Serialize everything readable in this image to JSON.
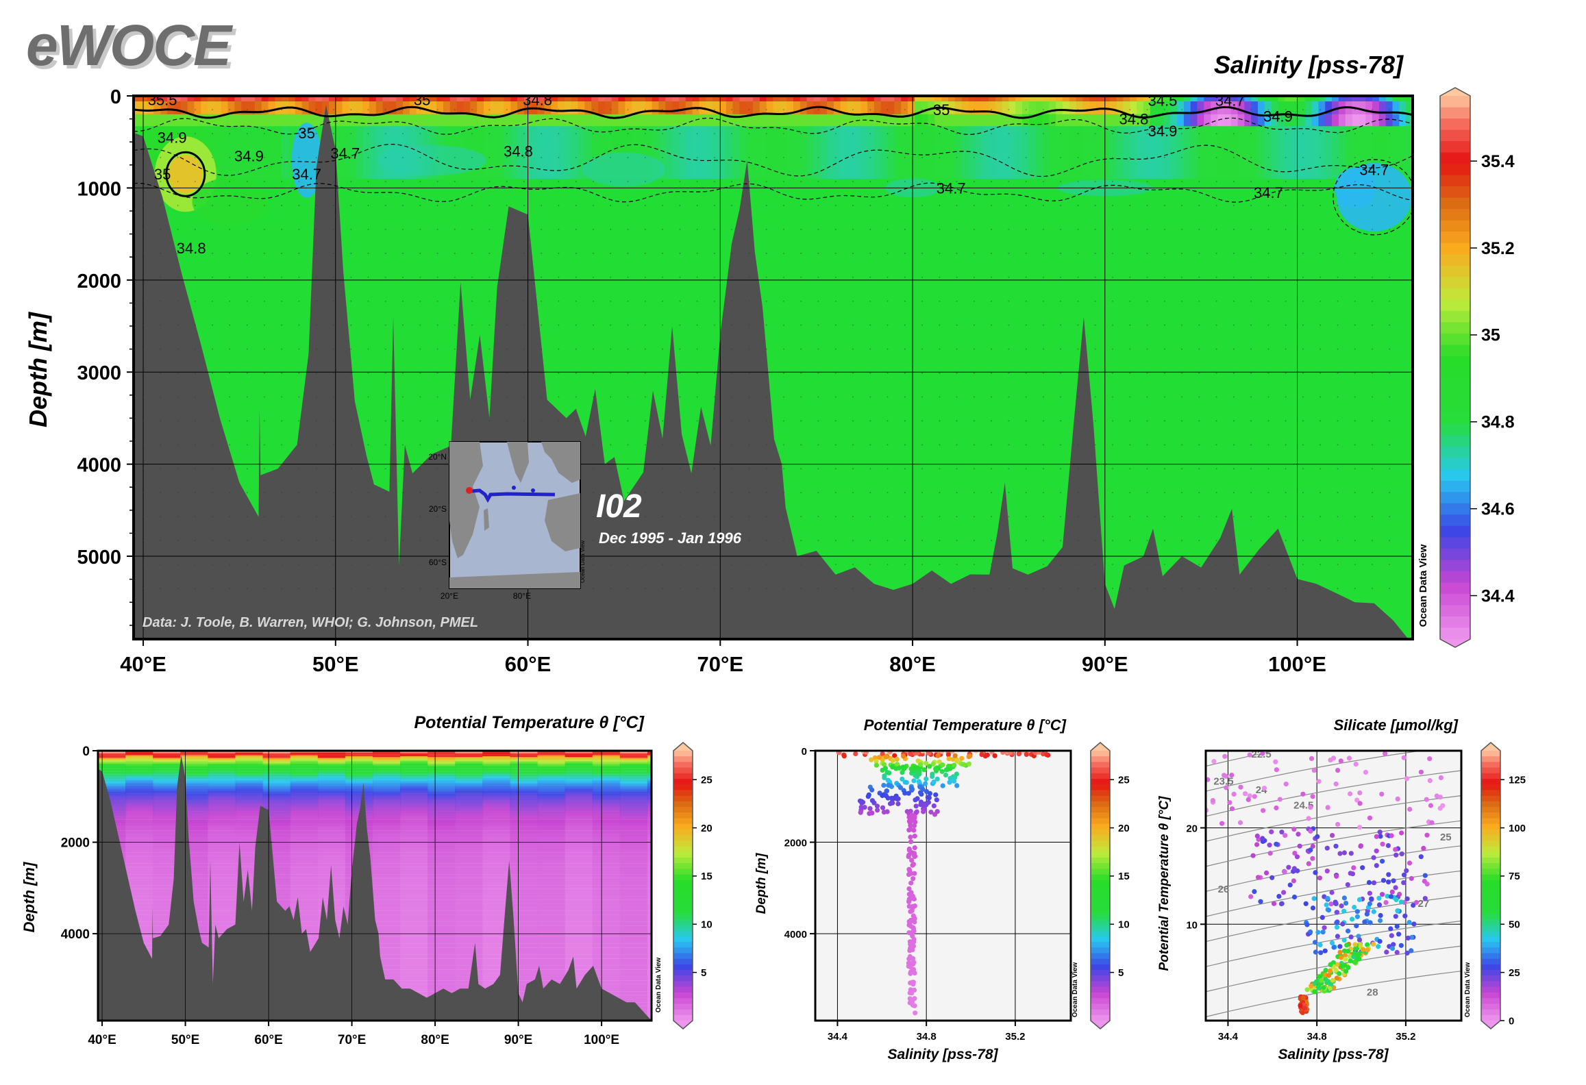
{
  "logo": "eWOCE",
  "colors": {
    "bathymetry": "#505050",
    "background": "#ffffff",
    "section_line": "#2222cc",
    "marker": "#e02020"
  },
  "chart_data": [
    {
      "id": "main-salinity-section",
      "type": "heatmap",
      "title": "Salinity [pss-78]",
      "ylabel": "Depth [m]",
      "xlabel": "",
      "x_ticks": [
        "40°E",
        "50°E",
        "60°E",
        "70°E",
        "80°E",
        "90°E",
        "100°E"
      ],
      "x_tick_values": [
        40,
        50,
        60,
        70,
        80,
        90,
        100
      ],
      "xlim": [
        39.5,
        106
      ],
      "y_ticks": [
        "0",
        "1000",
        "2000",
        "3000",
        "4000",
        "5000"
      ],
      "y_tick_values": [
        0,
        1000,
        2000,
        3000,
        4000,
        5000
      ],
      "ylim": [
        0,
        5900
      ],
      "colorbar": {
        "label": "Ocean Data View",
        "ticks": [
          "35.4",
          "35.2",
          "35",
          "34.8",
          "34.6",
          "34.4"
        ],
        "tick_values": [
          35.4,
          35.2,
          35.0,
          34.8,
          34.6,
          34.4
        ],
        "range": [
          34.3,
          35.55
        ]
      },
      "contour_labels": [
        {
          "text": "35.5",
          "lon": 41,
          "depth": 40
        },
        {
          "text": "35",
          "lon": 54.5,
          "depth": 40
        },
        {
          "text": "34.8",
          "lon": 60.5,
          "depth": 40
        },
        {
          "text": "34.9",
          "lon": 41.5,
          "depth": 450
        },
        {
          "text": "35",
          "lon": 41,
          "depth": 850
        },
        {
          "text": "34.9",
          "lon": 45.5,
          "depth": 650
        },
        {
          "text": "35",
          "lon": 48.5,
          "depth": 400
        },
        {
          "text": "34.7",
          "lon": 48.5,
          "depth": 850
        },
        {
          "text": "34.7",
          "lon": 50.5,
          "depth": 620
        },
        {
          "text": "34.8",
          "lon": 42.5,
          "depth": 1650
        },
        {
          "text": "34.8",
          "lon": 59.5,
          "depth": 600
        },
        {
          "text": "35",
          "lon": 81.5,
          "depth": 150
        },
        {
          "text": "34.7",
          "lon": 82,
          "depth": 1000
        },
        {
          "text": "34.8",
          "lon": 91.5,
          "depth": 250
        },
        {
          "text": "34.9",
          "lon": 93,
          "depth": 380
        },
        {
          "text": "34.5",
          "lon": 93,
          "depth": 50
        },
        {
          "text": "34.7",
          "lon": 96.5,
          "depth": 50
        },
        {
          "text": "34.9",
          "lon": 99,
          "depth": 220
        },
        {
          "text": "34.7",
          "lon": 98.5,
          "depth": 1050
        },
        {
          "text": "34.7",
          "lon": 104,
          "depth": 800
        }
      ],
      "station_label": "I02",
      "date_label": "Dec 1995 - Jan 1996",
      "credit": "Data: J. Toole, B. Warren, WHOI; G. Johnson, PMEL",
      "inset_map": {
        "lat_labels": [
          "20°N",
          "20°S",
          "60°S"
        ],
        "lon_labels": [
          "20°E",
          "80°E"
        ],
        "side_label": "Ocean Data View"
      }
    },
    {
      "id": "temperature-section",
      "type": "heatmap",
      "title": "Potential Temperature θ [°C]",
      "ylabel": "Depth [m]",
      "x_ticks": [
        "40°E",
        "50°E",
        "60°E",
        "70°E",
        "80°E",
        "90°E",
        "100°E"
      ],
      "x_tick_values": [
        40,
        50,
        60,
        70,
        80,
        90,
        100
      ],
      "xlim": [
        39.5,
        106
      ],
      "y_ticks": [
        "0",
        "2000",
        "4000"
      ],
      "y_tick_values": [
        0,
        2000,
        4000
      ],
      "ylim": [
        0,
        5900
      ],
      "colorbar": {
        "label": "Ocean Data View",
        "ticks": [
          "25",
          "20",
          "15",
          "10",
          "5"
        ],
        "tick_values": [
          25,
          20,
          15,
          10,
          5
        ],
        "range": [
          0,
          28
        ]
      }
    },
    {
      "id": "temperature-salinity-depth-scatter",
      "type": "scatter",
      "title": "Potential Temperature θ [°C]",
      "xlabel": "Salinity [pss-78]",
      "ylabel": "Depth [m]",
      "x_ticks": [
        "34.4",
        "34.8",
        "35.2"
      ],
      "x_tick_values": [
        34.4,
        34.8,
        35.2
      ],
      "xlim": [
        34.3,
        35.45
      ],
      "y_ticks": [
        "0",
        "2000",
        "4000"
      ],
      "y_tick_values": [
        0,
        2000,
        4000
      ],
      "ylim": [
        0,
        5900
      ],
      "colorbar": {
        "label": "Ocean Data View",
        "ticks": [
          "25",
          "20",
          "15",
          "10",
          "5"
        ],
        "tick_values": [
          25,
          20,
          15,
          10,
          5
        ],
        "range": [
          0,
          28
        ]
      },
      "clusters": [
        {
          "salinity_range": [
            34.4,
            35.35
          ],
          "depth_range": [
            0,
            120
          ],
          "temp_range": [
            24,
            28
          ],
          "n": 70
        },
        {
          "salinity_range": [
            34.55,
            35.0
          ],
          "depth_range": [
            100,
            400
          ],
          "temp_range": [
            13,
            22
          ],
          "n": 60
        },
        {
          "salinity_range": [
            34.6,
            34.95
          ],
          "depth_range": [
            350,
            800
          ],
          "temp_range": [
            7,
            12
          ],
          "n": 60
        },
        {
          "salinity_range": [
            34.5,
            34.85
          ],
          "depth_range": [
            750,
            1400
          ],
          "temp_range": [
            3,
            7
          ],
          "n": 80
        },
        {
          "salinity_range": [
            34.7,
            34.78
          ],
          "depth_range": [
            1400,
            5750
          ],
          "temp_range": [
            0.8,
            2.5
          ],
          "n": 120
        }
      ]
    },
    {
      "id": "theta-salinity-silicate-scatter",
      "type": "scatter",
      "title": "Silicate [µmol/kg]",
      "xlabel": "Salinity [pss-78]",
      "ylabel": "Potential Temperature θ [°C]",
      "x_ticks": [
        "34.4",
        "34.8",
        "35.2"
      ],
      "x_tick_values": [
        34.4,
        34.8,
        35.2
      ],
      "xlim": [
        34.3,
        35.45
      ],
      "y_ticks": [
        "20",
        "10"
      ],
      "y_tick_values": [
        20,
        10
      ],
      "ylim": [
        0,
        28
      ],
      "density_labels": [
        "22.5",
        "23.5",
        "24",
        "24.5",
        "25",
        "26",
        "27",
        "28"
      ],
      "density_label_positions": [
        {
          "text": "22.5",
          "s": 34.55,
          "t": 27.3
        },
        {
          "text": "23.5",
          "s": 34.38,
          "t": 24.5
        },
        {
          "text": "24",
          "s": 34.55,
          "t": 23.6
        },
        {
          "text": "24.5",
          "s": 34.74,
          "t": 22.0
        },
        {
          "text": "25",
          "s": 35.38,
          "t": 18.7
        },
        {
          "text": "26",
          "s": 34.38,
          "t": 13.3
        },
        {
          "text": "27",
          "s": 35.28,
          "t": 11.8
        },
        {
          "text": "28",
          "s": 35.05,
          "t": 2.6
        }
      ],
      "colorbar": {
        "label": "Ocean Data View",
        "ticks": [
          "125",
          "100",
          "75",
          "50",
          "25",
          "0"
        ],
        "tick_values": [
          125,
          100,
          75,
          50,
          25,
          0
        ],
        "range": [
          0,
          140
        ]
      },
      "clusters": [
        {
          "salinity_range": [
            34.3,
            35.4
          ],
          "temp_range": [
            20,
            28
          ],
          "silicate_range": [
            0,
            10
          ],
          "n": 70
        },
        {
          "salinity_range": [
            34.5,
            35.3
          ],
          "temp_range": [
            12,
            20
          ],
          "silicate_range": [
            8,
            30
          ],
          "n": 120
        },
        {
          "salinity_range": [
            34.75,
            35.25
          ],
          "temp_range": [
            7,
            13
          ],
          "silicate_range": [
            20,
            45
          ],
          "n": 100
        },
        {
          "salinity_range": [
            34.55,
            34.95
          ],
          "temp_range": [
            3,
            8
          ],
          "silicate_range": [
            50,
            110
          ],
          "n": 120
        },
        {
          "salinity_range": [
            34.7,
            34.78
          ],
          "temp_range": [
            0.8,
            2.5
          ],
          "silicate_range": [
            110,
            135
          ],
          "n": 60
        }
      ]
    }
  ]
}
